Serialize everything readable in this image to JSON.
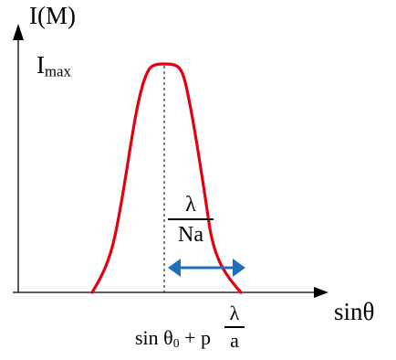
{
  "diagram": {
    "y_axis_label_main": "I(M)",
    "max_label_main": "I",
    "max_label_sub": "max",
    "x_axis_label": "sinθ",
    "width_fraction": {
      "numerator": "λ",
      "denominator": "Na"
    },
    "condition": {
      "lhs_main": "sin θ",
      "lhs_sub": "0",
      "operator": " + p",
      "fraction_numerator": "λ",
      "fraction_denominator": "a"
    },
    "colors": {
      "curve": "#e3000f",
      "arrow": "#1f6fbf",
      "axes": "#000000"
    }
  }
}
